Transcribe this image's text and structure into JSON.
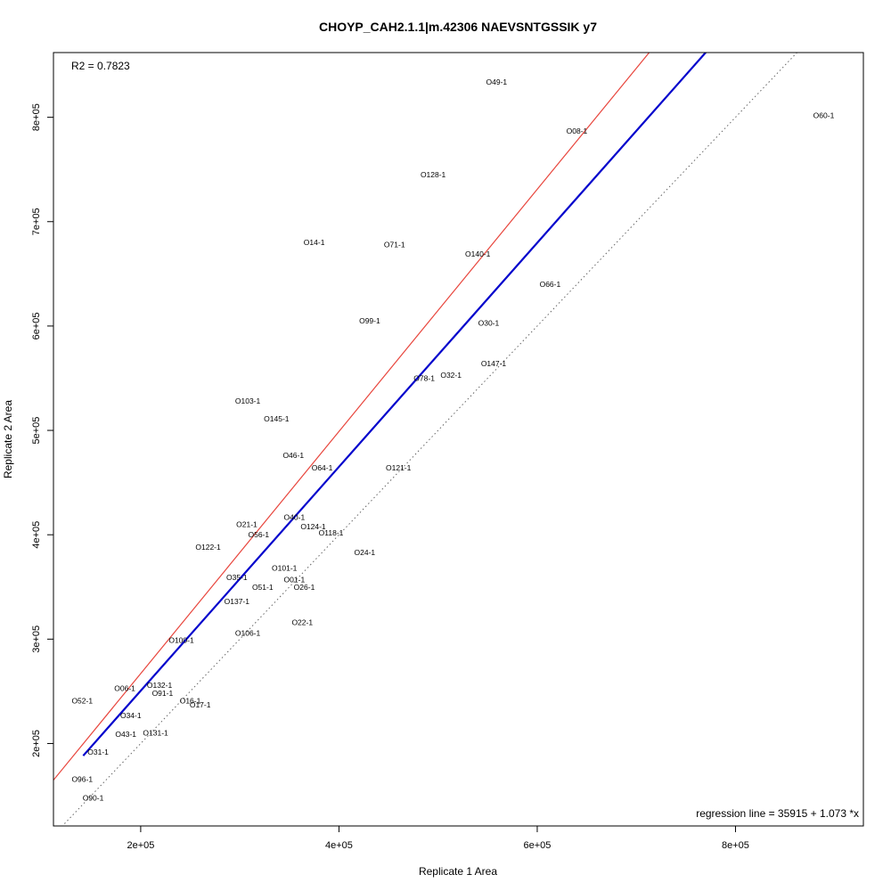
{
  "chart_data": {
    "type": "scatter",
    "title": "CHOYP_CAH2.1.1|m.42306 NAEVSNTGSSIK y7",
    "xlabel": "Replicate 1 Area",
    "ylabel": "Replicate 2 Area",
    "xlim": [
      112000,
      929000
    ],
    "ylim": [
      121000,
      862000
    ],
    "x_ticks": [
      {
        "value": 200000,
        "label": "2e+05"
      },
      {
        "value": 400000,
        "label": "4e+05"
      },
      {
        "value": 600000,
        "label": "6e+05"
      },
      {
        "value": 800000,
        "label": "8e+05"
      }
    ],
    "y_ticks": [
      {
        "value": 200000,
        "label": "2e+05"
      },
      {
        "value": 300000,
        "label": "3e+05"
      },
      {
        "value": 400000,
        "label": "4e+05"
      },
      {
        "value": 500000,
        "label": "5e+05"
      },
      {
        "value": 600000,
        "label": "6e+05"
      },
      {
        "value": 700000,
        "label": "7e+05"
      },
      {
        "value": 800000,
        "label": "8e+05"
      }
    ],
    "r2_text": "R2 = 0.7823",
    "regression_text": "regression line = 35915 + 1.073 *x",
    "regression": {
      "intercept": 35915,
      "slope": 1.073,
      "x_start": 142000,
      "color": "#0000cc"
    },
    "reference_line": {
      "intercept": 35000,
      "slope": 1.16,
      "color": "#e8453c"
    },
    "identity_line": {
      "intercept": 0,
      "slope": 1,
      "color": "#666666",
      "style": "dotted"
    },
    "grid": false,
    "points": [
      {
        "label": "O49-1",
        "x": 559000,
        "y": 834000
      },
      {
        "label": "O60-1",
        "x": 889000,
        "y": 802000
      },
      {
        "label": "O08-1",
        "x": 640000,
        "y": 787000
      },
      {
        "label": "O128-1",
        "x": 495000,
        "y": 745000
      },
      {
        "label": "O14-1",
        "x": 375000,
        "y": 680000
      },
      {
        "label": "O71-1",
        "x": 456000,
        "y": 678000
      },
      {
        "label": "O140-1",
        "x": 540000,
        "y": 669000
      },
      {
        "label": "O66-1",
        "x": 613000,
        "y": 640000
      },
      {
        "label": "O99-1",
        "x": 431000,
        "y": 605000
      },
      {
        "label": "O30-1",
        "x": 551000,
        "y": 603000
      },
      {
        "label": "O147-1",
        "x": 556000,
        "y": 564000
      },
      {
        "label": "O32-1",
        "x": 513000,
        "y": 553000
      },
      {
        "label": "O78-1",
        "x": 486000,
        "y": 550000
      },
      {
        "label": "O103-1",
        "x": 308000,
        "y": 528000
      },
      {
        "label": "O145-1",
        "x": 337000,
        "y": 511000
      },
      {
        "label": "O46-1",
        "x": 354000,
        "y": 476000
      },
      {
        "label": "O64-1",
        "x": 383000,
        "y": 464000
      },
      {
        "label": "O121-1",
        "x": 460000,
        "y": 464000
      },
      {
        "label": "O40-1",
        "x": 355000,
        "y": 417000
      },
      {
        "label": "O21-1",
        "x": 307000,
        "y": 410000
      },
      {
        "label": "O124-1",
        "x": 374000,
        "y": 408000
      },
      {
        "label": "O56-1",
        "x": 319000,
        "y": 400000
      },
      {
        "label": "O118-1",
        "x": 392000,
        "y": 402000
      },
      {
        "label": "O122-1",
        "x": 268000,
        "y": 388000
      },
      {
        "label": "O24-1",
        "x": 426000,
        "y": 383000
      },
      {
        "label": "O101-1",
        "x": 345000,
        "y": 368000
      },
      {
        "label": "O35-1",
        "x": 297000,
        "y": 359000
      },
      {
        "label": "O01-1",
        "x": 355000,
        "y": 357000
      },
      {
        "label": "O51-1",
        "x": 323000,
        "y": 350000
      },
      {
        "label": "O26-1",
        "x": 365000,
        "y": 350000
      },
      {
        "label": "O137-1",
        "x": 297000,
        "y": 336000
      },
      {
        "label": "O22-1",
        "x": 363000,
        "y": 316000
      },
      {
        "label": "O106-1",
        "x": 308000,
        "y": 306000
      },
      {
        "label": "O100-1",
        "x": 241000,
        "y": 299000
      },
      {
        "label": "O06-1",
        "x": 184000,
        "y": 253000
      },
      {
        "label": "O132-1",
        "x": 219000,
        "y": 256000
      },
      {
        "label": "O91-1",
        "x": 222000,
        "y": 248000
      },
      {
        "label": "O52-1",
        "x": 141000,
        "y": 241000
      },
      {
        "label": "O16-1",
        "x": 250000,
        "y": 241000
      },
      {
        "label": "O17-1",
        "x": 260000,
        "y": 237000
      },
      {
        "label": "O34-1",
        "x": 190000,
        "y": 227000
      },
      {
        "label": "O43-1",
        "x": 185000,
        "y": 209000
      },
      {
        "label": "O131-1",
        "x": 215000,
        "y": 210000
      },
      {
        "label": "O31-1",
        "x": 157000,
        "y": 192000
      },
      {
        "label": "O96-1",
        "x": 141000,
        "y": 166000
      },
      {
        "label": "O90-1",
        "x": 152000,
        "y": 148000
      }
    ]
  }
}
